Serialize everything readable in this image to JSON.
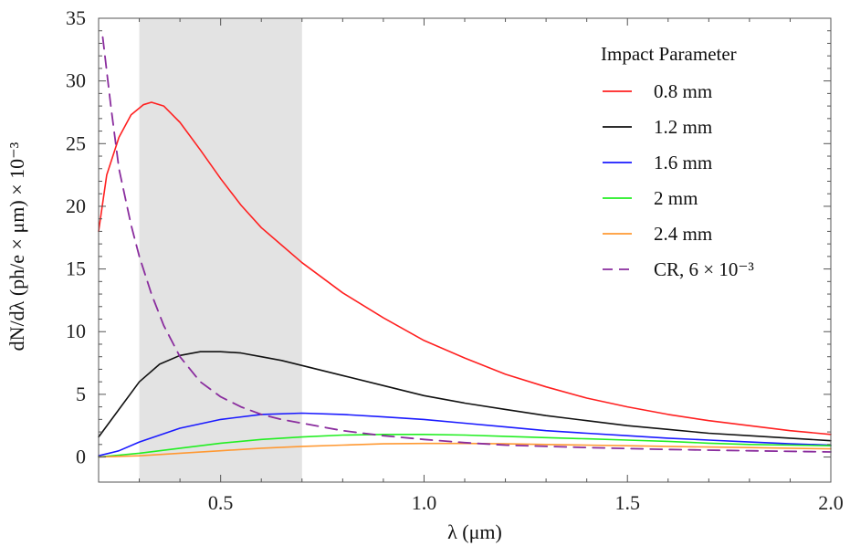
{
  "chart_data": {
    "type": "line",
    "xlabel": "λ (μm)",
    "ylabel": "dN/dλ (ph/e × μm) × 10⁻³",
    "xlim": [
      0.2,
      2.0
    ],
    "ylim": [
      -2,
      35
    ],
    "x_ticks": [
      0.5,
      1.0,
      1.5,
      2.0
    ],
    "x_tick_labels": [
      "0.5",
      "1.0",
      "1.5",
      "2.0"
    ],
    "y_ticks": [
      0,
      5,
      10,
      15,
      20,
      25,
      30,
      35
    ],
    "y_tick_labels": [
      "0",
      "5",
      "10",
      "15",
      "20",
      "25",
      "30",
      "35"
    ],
    "shaded_region": [
      0.3,
      0.7
    ],
    "legend": {
      "title": "Impact Parameter",
      "placement": "top-right"
    },
    "series": [
      {
        "name": "0.8 mm",
        "color": "#ff2020",
        "style": "solid",
        "points": [
          [
            0.2,
            18.0
          ],
          [
            0.22,
            22.5
          ],
          [
            0.25,
            25.5
          ],
          [
            0.28,
            27.3
          ],
          [
            0.31,
            28.1
          ],
          [
            0.33,
            28.3
          ],
          [
            0.36,
            28.0
          ],
          [
            0.4,
            26.7
          ],
          [
            0.45,
            24.5
          ],
          [
            0.5,
            22.2
          ],
          [
            0.55,
            20.1
          ],
          [
            0.6,
            18.3
          ],
          [
            0.65,
            16.9
          ],
          [
            0.7,
            15.5
          ],
          [
            0.75,
            14.3
          ],
          [
            0.8,
            13.1
          ],
          [
            0.9,
            11.1
          ],
          [
            1.0,
            9.3
          ],
          [
            1.1,
            7.9
          ],
          [
            1.2,
            6.6
          ],
          [
            1.3,
            5.6
          ],
          [
            1.4,
            4.7
          ],
          [
            1.5,
            4.0
          ],
          [
            1.6,
            3.4
          ],
          [
            1.7,
            2.9
          ],
          [
            1.8,
            2.5
          ],
          [
            1.9,
            2.1
          ],
          [
            2.0,
            1.8
          ]
        ]
      },
      {
        "name": "1.2 mm",
        "color": "#111111",
        "style": "solid",
        "points": [
          [
            0.2,
            1.6
          ],
          [
            0.25,
            3.8
          ],
          [
            0.3,
            6.0
          ],
          [
            0.35,
            7.4
          ],
          [
            0.4,
            8.1
          ],
          [
            0.45,
            8.4
          ],
          [
            0.5,
            8.4
          ],
          [
            0.55,
            8.3
          ],
          [
            0.6,
            8.0
          ],
          [
            0.65,
            7.7
          ],
          [
            0.7,
            7.3
          ],
          [
            0.8,
            6.5
          ],
          [
            0.9,
            5.7
          ],
          [
            1.0,
            4.9
          ],
          [
            1.1,
            4.3
          ],
          [
            1.2,
            3.8
          ],
          [
            1.3,
            3.3
          ],
          [
            1.4,
            2.9
          ],
          [
            1.5,
            2.5
          ],
          [
            1.6,
            2.2
          ],
          [
            1.7,
            1.9
          ],
          [
            1.8,
            1.7
          ],
          [
            1.9,
            1.5
          ],
          [
            2.0,
            1.3
          ]
        ]
      },
      {
        "name": "1.6 mm",
        "color": "#1a1aff",
        "style": "solid",
        "points": [
          [
            0.2,
            0.1
          ],
          [
            0.25,
            0.5
          ],
          [
            0.3,
            1.2
          ],
          [
            0.4,
            2.3
          ],
          [
            0.5,
            3.0
          ],
          [
            0.6,
            3.4
          ],
          [
            0.7,
            3.5
          ],
          [
            0.8,
            3.4
          ],
          [
            0.9,
            3.2
          ],
          [
            1.0,
            3.0
          ],
          [
            1.1,
            2.7
          ],
          [
            1.2,
            2.4
          ],
          [
            1.3,
            2.1
          ],
          [
            1.4,
            1.9
          ],
          [
            1.5,
            1.7
          ],
          [
            1.6,
            1.5
          ],
          [
            1.7,
            1.35
          ],
          [
            1.8,
            1.2
          ],
          [
            1.9,
            1.05
          ],
          [
            2.0,
            0.95
          ]
        ]
      },
      {
        "name": " 2 mm",
        "color": "#22ee22",
        "style": "solid",
        "points": [
          [
            0.2,
            0.0
          ],
          [
            0.3,
            0.3
          ],
          [
            0.4,
            0.7
          ],
          [
            0.5,
            1.1
          ],
          [
            0.6,
            1.4
          ],
          [
            0.7,
            1.6
          ],
          [
            0.8,
            1.75
          ],
          [
            0.9,
            1.8
          ],
          [
            1.0,
            1.8
          ],
          [
            1.1,
            1.75
          ],
          [
            1.2,
            1.65
          ],
          [
            1.3,
            1.55
          ],
          [
            1.4,
            1.45
          ],
          [
            1.5,
            1.35
          ],
          [
            1.6,
            1.25
          ],
          [
            1.7,
            1.1
          ],
          [
            1.8,
            1.0
          ],
          [
            1.9,
            0.95
          ],
          [
            2.0,
            0.9
          ]
        ]
      },
      {
        "name": "2.4 mm",
        "color": "#ff9933",
        "style": "solid",
        "points": [
          [
            0.2,
            0.0
          ],
          [
            0.3,
            0.1
          ],
          [
            0.4,
            0.3
          ],
          [
            0.5,
            0.5
          ],
          [
            0.6,
            0.7
          ],
          [
            0.7,
            0.85
          ],
          [
            0.8,
            0.95
          ],
          [
            0.9,
            1.05
          ],
          [
            1.0,
            1.08
          ],
          [
            1.1,
            1.08
          ],
          [
            1.2,
            1.05
          ],
          [
            1.3,
            1.0
          ],
          [
            1.4,
            0.95
          ],
          [
            1.5,
            0.9
          ],
          [
            1.6,
            0.85
          ],
          [
            1.7,
            0.8
          ],
          [
            1.8,
            0.75
          ],
          [
            1.9,
            0.7
          ],
          [
            2.0,
            0.65
          ]
        ]
      },
      {
        "name": "CR, 6 × 10⁻³",
        "color": "#8a2d9e",
        "style": "dashed",
        "points": [
          [
            0.21,
            33.5
          ],
          [
            0.23,
            28.0
          ],
          [
            0.25,
            23.0
          ],
          [
            0.28,
            18.5
          ],
          [
            0.3,
            16.0
          ],
          [
            0.33,
            13.0
          ],
          [
            0.36,
            10.5
          ],
          [
            0.4,
            8.0
          ],
          [
            0.45,
            6.0
          ],
          [
            0.5,
            4.8
          ],
          [
            0.55,
            4.0
          ],
          [
            0.6,
            3.4
          ],
          [
            0.65,
            3.0
          ],
          [
            0.7,
            2.7
          ],
          [
            0.8,
            2.1
          ],
          [
            0.9,
            1.7
          ],
          [
            1.0,
            1.4
          ],
          [
            1.1,
            1.15
          ],
          [
            1.2,
            0.95
          ],
          [
            1.4,
            0.75
          ],
          [
            1.6,
            0.6
          ],
          [
            1.8,
            0.5
          ],
          [
            2.0,
            0.4
          ]
        ]
      }
    ]
  }
}
